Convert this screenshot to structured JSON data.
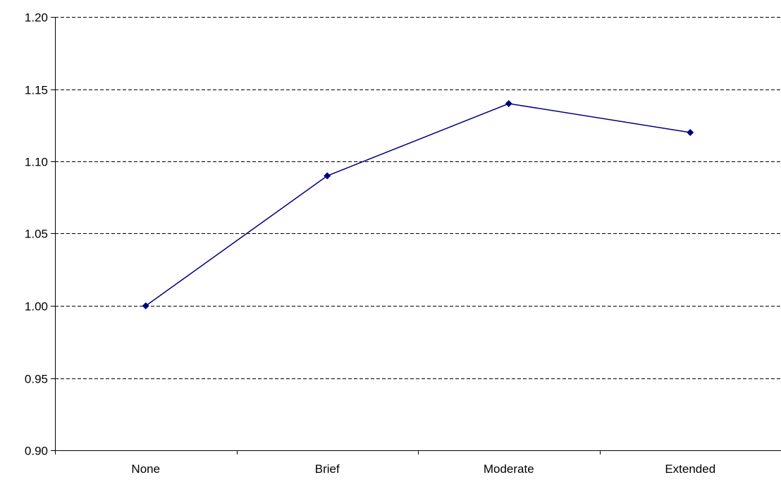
{
  "chart_data": {
    "type": "line",
    "title": "",
    "xlabel": "",
    "ylabel": "",
    "categories": [
      "None",
      "Brief",
      "Moderate",
      "Extended"
    ],
    "series": [
      {
        "values": [
          1.0,
          1.09,
          1.14,
          1.12
        ]
      }
    ],
    "ylim": [
      0.9,
      1.2
    ],
    "yticks": [
      0.9,
      0.95,
      1.0,
      1.05,
      1.1,
      1.15,
      1.2
    ],
    "ytick_labels": [
      "0.90",
      "0.95",
      "1.00",
      "1.05",
      "1.10",
      "1.15",
      "1.20"
    ],
    "grid": "horizontal dashed",
    "legend": "none",
    "line_color": "#000080",
    "marker": "diamond"
  }
}
